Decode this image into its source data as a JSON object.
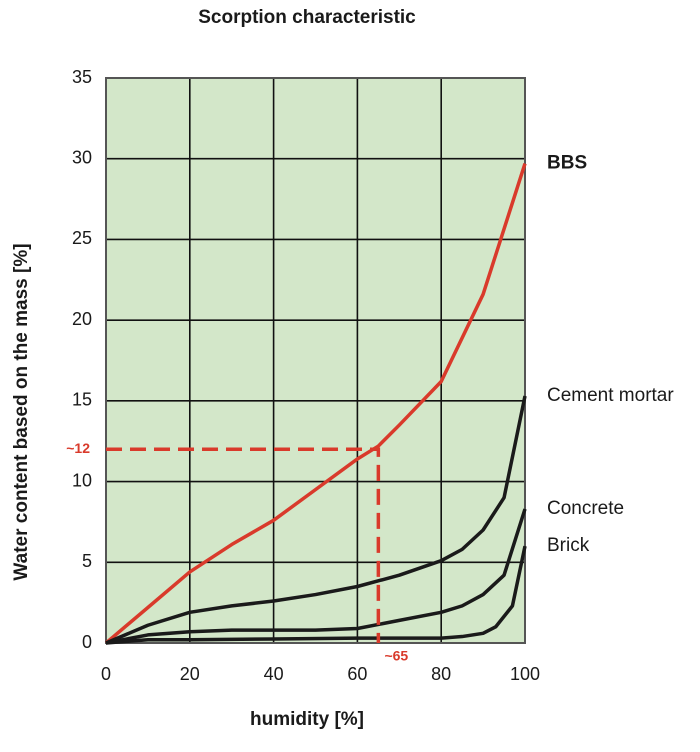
{
  "chart_data": {
    "type": "line",
    "title": "Scorption characteristic",
    "x_label": "humidity [%]",
    "y_label": "Water content based on the mass [%]",
    "xlim": [
      0,
      100
    ],
    "xticks": [
      0,
      20,
      40,
      60,
      80,
      100
    ],
    "ylim": [
      0,
      35
    ],
    "yticks": [
      0,
      5,
      10,
      15,
      20,
      25,
      30,
      35
    ],
    "grid": true,
    "background": "#d3e7c9",
    "series": [
      {
        "name": "BBS",
        "color": "#d93a2b",
        "x": [
          0,
          10,
          20,
          30,
          40,
          50,
          60,
          65,
          70,
          80,
          90,
          100
        ],
        "values": [
          0,
          2.2,
          4.4,
          6.1,
          7.6,
          9.5,
          11.4,
          12.2,
          13.5,
          16.2,
          21.6,
          29.7
        ]
      },
      {
        "name": "Cement mortar",
        "color": "#1a1a1a",
        "x": [
          0,
          10,
          20,
          30,
          40,
          50,
          60,
          70,
          80,
          85,
          90,
          95,
          100
        ],
        "values": [
          0,
          1.1,
          1.9,
          2.3,
          2.6,
          3.0,
          3.5,
          4.2,
          5.1,
          5.8,
          7.0,
          9.0,
          15.3
        ]
      },
      {
        "name": "Concrete",
        "color": "#1a1a1a",
        "x": [
          0,
          10,
          20,
          30,
          40,
          50,
          60,
          70,
          80,
          85,
          90,
          95,
          100
        ],
        "values": [
          0,
          0.5,
          0.7,
          0.8,
          0.8,
          0.8,
          0.9,
          1.4,
          1.9,
          2.3,
          3.0,
          4.2,
          8.3
        ]
      },
      {
        "name": "Brick",
        "color": "#1a1a1a",
        "x": [
          0,
          10,
          20,
          40,
          60,
          80,
          85,
          90,
          93,
          97,
          100
        ],
        "values": [
          0,
          0.2,
          0.2,
          0.25,
          0.3,
          0.3,
          0.4,
          0.6,
          1.0,
          2.3,
          6.0
        ]
      }
    ],
    "annotation": {
      "x": 65,
      "y": 12,
      "x_label": "~65",
      "y_label": "~12",
      "color": "#d93a2b"
    }
  }
}
